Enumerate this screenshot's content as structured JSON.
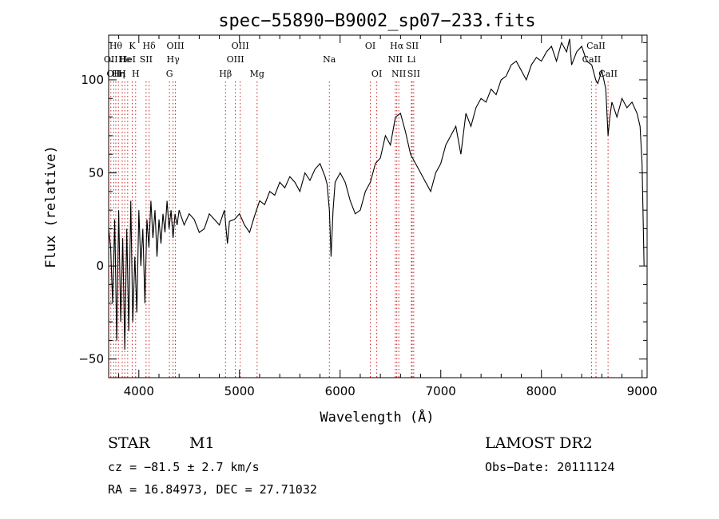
{
  "chart_data": {
    "type": "line",
    "title": "spec−55890−B9002_sp07−233.fits",
    "xlabel": "Wavelength (Å)",
    "ylabel": "Flux (relative)",
    "xlim": [
      3700,
      9050
    ],
    "ylim": [
      -60,
      124
    ],
    "xticks": [
      4000,
      5000,
      6000,
      7000,
      8000,
      9000
    ],
    "yticks": [
      -50,
      0,
      50,
      100
    ],
    "xtick_labels": [
      "4000",
      "5000",
      "6000",
      "7000",
      "8000",
      "9000"
    ],
    "ytick_labels": [
      "−50",
      "0",
      "50",
      "100"
    ],
    "grid": false,
    "series": [
      {
        "x": [
          3700,
          3720,
          3740,
          3760,
          3780,
          3800,
          3820,
          3840,
          3860,
          3880,
          3900,
          3920,
          3940,
          3960,
          3980,
          4000,
          4020,
          4040,
          4060,
          4080,
          4100,
          4120,
          4140,
          4160,
          4180,
          4200,
          4220,
          4240,
          4260,
          4280,
          4300,
          4320,
          4340,
          4360,
          4380,
          4400,
          4450,
          4500,
          4550,
          4600,
          4650,
          4700,
          4750,
          4800,
          4850,
          4880,
          4900,
          4950,
          5000,
          5050,
          5100,
          5150,
          5200,
          5250,
          5300,
          5350,
          5400,
          5450,
          5500,
          5550,
          5600,
          5650,
          5700,
          5750,
          5800,
          5850,
          5870,
          5893,
          5910,
          5930,
          5950,
          6000,
          6050,
          6100,
          6150,
          6200,
          6250,
          6300,
          6350,
          6400,
          6450,
          6500,
          6550,
          6600,
          6650,
          6700,
          6750,
          6800,
          6850,
          6900,
          6950,
          7000,
          7050,
          7100,
          7150,
          7200,
          7250,
          7300,
          7350,
          7400,
          7450,
          7500,
          7550,
          7600,
          7650,
          7700,
          7750,
          7800,
          7850,
          7900,
          7950,
          8000,
          8050,
          8100,
          8150,
          8200,
          8250,
          8280,
          8300,
          8350,
          8400,
          8450,
          8500,
          8540,
          8560,
          8600,
          8640,
          8662,
          8680,
          8700,
          8720,
          8750,
          8800,
          8850,
          8900,
          8950,
          8980,
          9000,
          9020
        ],
        "y": [
          20,
          10,
          -20,
          25,
          -40,
          30,
          -30,
          15,
          -45,
          20,
          -35,
          35,
          -30,
          5,
          -25,
          30,
          0,
          20,
          -20,
          25,
          10,
          35,
          15,
          30,
          5,
          25,
          12,
          28,
          18,
          35,
          20,
          30,
          15,
          28,
          22,
          30,
          22,
          28,
          25,
          18,
          20,
          28,
          25,
          22,
          30,
          12,
          24,
          25,
          28,
          22,
          18,
          27,
          35,
          33,
          40,
          38,
          45,
          42,
          48,
          45,
          40,
          50,
          46,
          52,
          55,
          48,
          44,
          30,
          5,
          30,
          45,
          50,
          45,
          35,
          28,
          30,
          40,
          45,
          55,
          58,
          70,
          65,
          80,
          82,
          72,
          60,
          55,
          50,
          45,
          40,
          50,
          55,
          65,
          70,
          75,
          60,
          82,
          75,
          85,
          90,
          88,
          95,
          92,
          100,
          102,
          108,
          110,
          105,
          100,
          108,
          112,
          110,
          115,
          118,
          110,
          120,
          115,
          122,
          108,
          115,
          118,
          110,
          108,
          100,
          98,
          105,
          95,
          70,
          80,
          88,
          85,
          80,
          90,
          85,
          88,
          82,
          75,
          55,
          0
        ]
      }
    ],
    "spectral_lines": [
      {
        "x": 3722,
        "label": "OII",
        "row": 2
      },
      {
        "x": 3750,
        "label": "OII",
        "row": 3
      },
      {
        "x": 3771,
        "label": "Hθ",
        "row": 1
      },
      {
        "x": 3797,
        "label": "Hη",
        "row": 3
      },
      {
        "x": 3835,
        "label": "H",
        "row": 3
      },
      {
        "x": 3860,
        "label": "He",
        "row": 2
      },
      {
        "x": 3889,
        "label": "HeI",
        "row": 2
      },
      {
        "x": 3934,
        "label": "K",
        "row": 1
      },
      {
        "x": 3968,
        "label": "H",
        "row": 3
      },
      {
        "x": 4072,
        "label": "SII",
        "row": 2
      },
      {
        "x": 4102,
        "label": "Hδ",
        "row": 1
      },
      {
        "x": 4304,
        "label": "G",
        "row": 3
      },
      {
        "x": 4340,
        "label": "Hγ",
        "row": 2
      },
      {
        "x": 4363,
        "label": "OIII",
        "row": 1
      },
      {
        "x": 4861,
        "label": "Hβ",
        "row": 3
      },
      {
        "x": 4959,
        "label": "OIII",
        "row": 2
      },
      {
        "x": 5007,
        "label": "OIII",
        "row": 1
      },
      {
        "x": 5175,
        "label": "Mg",
        "row": 3
      },
      {
        "x": 5893,
        "label": "Na",
        "row": 2
      },
      {
        "x": 6300,
        "label": "OI",
        "row": 1
      },
      {
        "x": 6364,
        "label": "OI",
        "row": 3
      },
      {
        "x": 6548,
        "label": "NII",
        "row": 2
      },
      {
        "x": 6563,
        "label": "Hα",
        "row": 1
      },
      {
        "x": 6583,
        "label": "NII",
        "row": 3
      },
      {
        "x": 6708,
        "label": "Li",
        "row": 2
      },
      {
        "x": 6716,
        "label": "SII",
        "row": 1
      },
      {
        "x": 6731,
        "label": "SII",
        "row": 3
      },
      {
        "x": 8498,
        "label": "CaII",
        "row": 2
      },
      {
        "x": 8542,
        "label": "CaII",
        "row": 1
      },
      {
        "x": 8662,
        "label": "CaII",
        "row": 3
      }
    ]
  },
  "info": {
    "class_label": "STAR",
    "subclass": "M1",
    "survey": "LAMOST DR2",
    "cz": "cz = −81.5 ± 2.7 km/s",
    "obs_date": "Obs−Date: 20111124",
    "coords": "RA =  16.84973, DEC =  27.71032"
  },
  "colors": {
    "spectrum": "#000000",
    "line_markers": "#cc2222",
    "axes": "#000000"
  }
}
